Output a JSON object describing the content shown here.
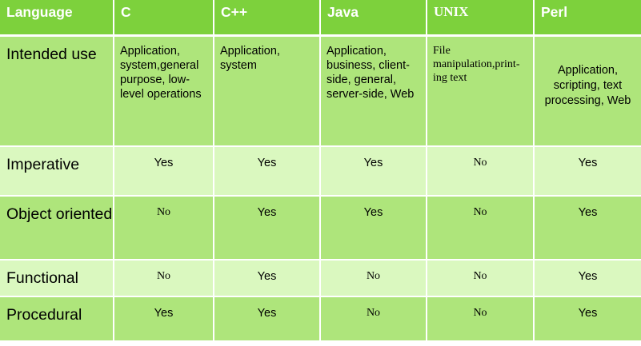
{
  "headers": [
    "Language",
    "C",
    "C++",
    "Java",
    "UNIX",
    "Perl"
  ],
  "rows": [
    {
      "label": "Intended use",
      "cells": [
        "Application, system,general purpose,  low-level operations",
        "Application, system",
        "Application, business, client-side, general, server-side, Web",
        "File manipulation,print-ing text",
        "Application, scripting, text processing, Web"
      ]
    },
    {
      "label": "Imperative",
      "cells": [
        "Yes",
        "Yes",
        "Yes",
        "No",
        "Yes"
      ]
    },
    {
      "label": "Object oriented",
      "cells": [
        "No",
        "Yes",
        "Yes",
        "No",
        "Yes"
      ]
    },
    {
      "label": "Functional",
      "cells": [
        "No",
        "Yes",
        "No",
        "No",
        "Yes"
      ]
    },
    {
      "label": "Procedural",
      "cells": [
        "Yes",
        "Yes",
        "No",
        "No",
        "Yes"
      ]
    }
  ],
  "colors": {
    "header": "#7dd13c",
    "row_dark": "#aee57b",
    "row_light": "#daf8bf"
  }
}
